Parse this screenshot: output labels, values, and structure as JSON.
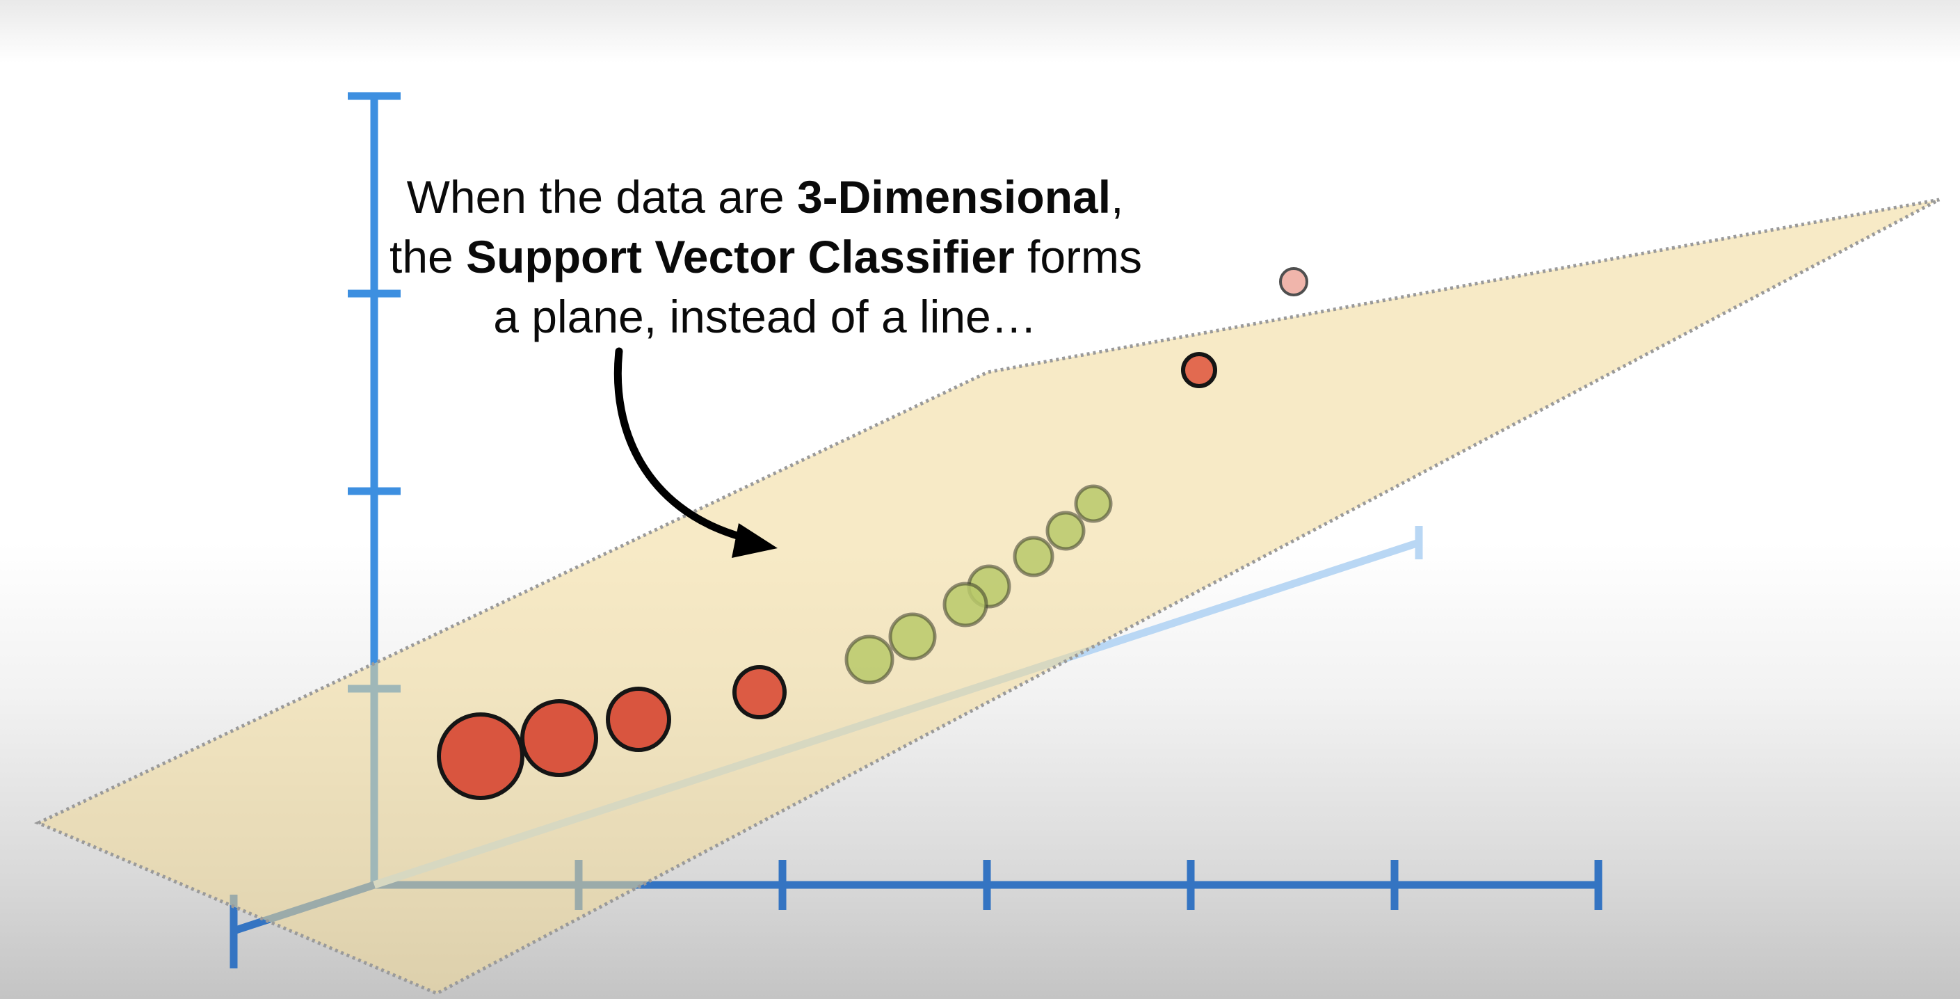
{
  "caption": {
    "line1_pre": "When the data are ",
    "line1_bold": "3-Dimensional",
    "line1_post": ",",
    "line2_pre": "the ",
    "line2_bold": "Support Vector Classifier",
    "line2_post": " forms",
    "line3": "a plane, instead of a line…"
  },
  "colors": {
    "axis": "#3d8fe0",
    "axis_faint": "#b9d7f4",
    "plane_fill": "#f1d898",
    "plane_edge": "#9a9a9a",
    "red_point": "#d9553f",
    "green_point": "#b9c96a",
    "outline": "#151515"
  },
  "icons": {
    "arrow": "curved-arrow-icon"
  }
}
